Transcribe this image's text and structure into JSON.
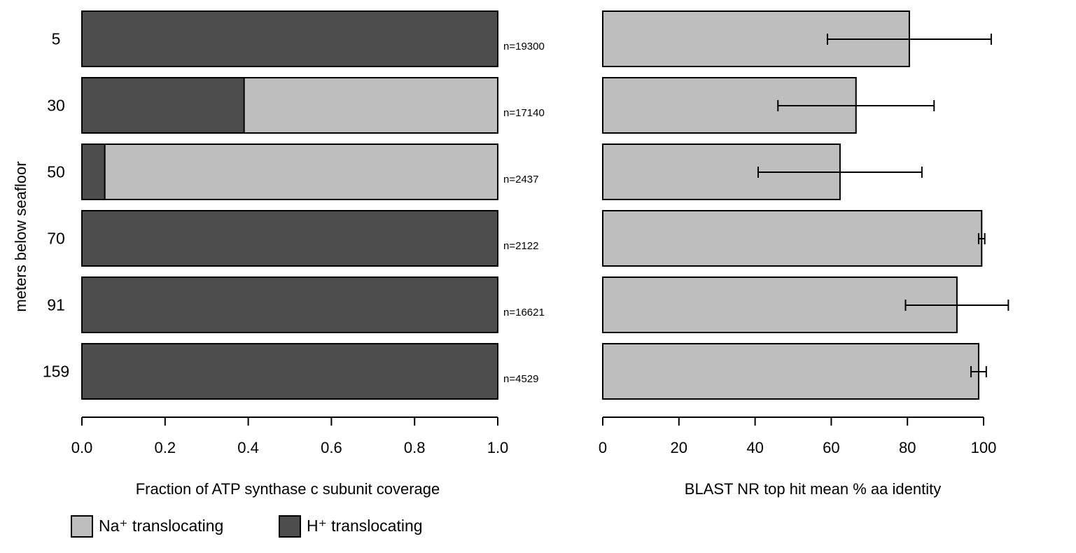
{
  "colors": {
    "na": "#bebebe",
    "h": "#4d4d4d",
    "identity": "#bebebe"
  },
  "chart_data": [
    {
      "type": "bar",
      "orientation": "horizontal",
      "stacked": true,
      "categories": [
        "5",
        "30",
        "50",
        "70",
        "91",
        "159"
      ],
      "ylabel": "meters below seafloor",
      "xlabel": "Fraction of ATP synthase c subunit coverage",
      "xlim": [
        0,
        1
      ],
      "xticks": [
        "0.0",
        "0.2",
        "0.4",
        "0.6",
        "0.8",
        "1.0"
      ],
      "series": [
        {
          "name": "H⁺ translocating",
          "values": [
            1.0,
            0.39,
            0.055,
            1.0,
            1.0,
            1.0
          ]
        },
        {
          "name": "Na⁺ translocating",
          "values": [
            0.0,
            0.61,
            0.945,
            0.0,
            0.0,
            0.0
          ]
        }
      ],
      "annotations": [
        "n=19300",
        "n=17140",
        "n=2437",
        "n=2122",
        "n=16621",
        "n=4529"
      ],
      "legend": "bottom-left"
    },
    {
      "type": "bar",
      "orientation": "horizontal",
      "categories": [
        "5",
        "30",
        "50",
        "70",
        "91",
        "159"
      ],
      "xlabel": "BLAST NR top hit mean % aa identity",
      "xlim": [
        0,
        100
      ],
      "xticks": [
        "0",
        "20",
        "40",
        "60",
        "80",
        "100"
      ],
      "values": [
        80.5,
        66.5,
        62.3,
        99.5,
        93.0,
        98.7
      ],
      "error": [
        21.5,
        20.5,
        21.5,
        0.8,
        13.5,
        2.0
      ]
    }
  ],
  "legend": {
    "items": [
      {
        "label": "Na⁺ translocating"
      },
      {
        "label": "H⁺ translocating"
      }
    ]
  }
}
